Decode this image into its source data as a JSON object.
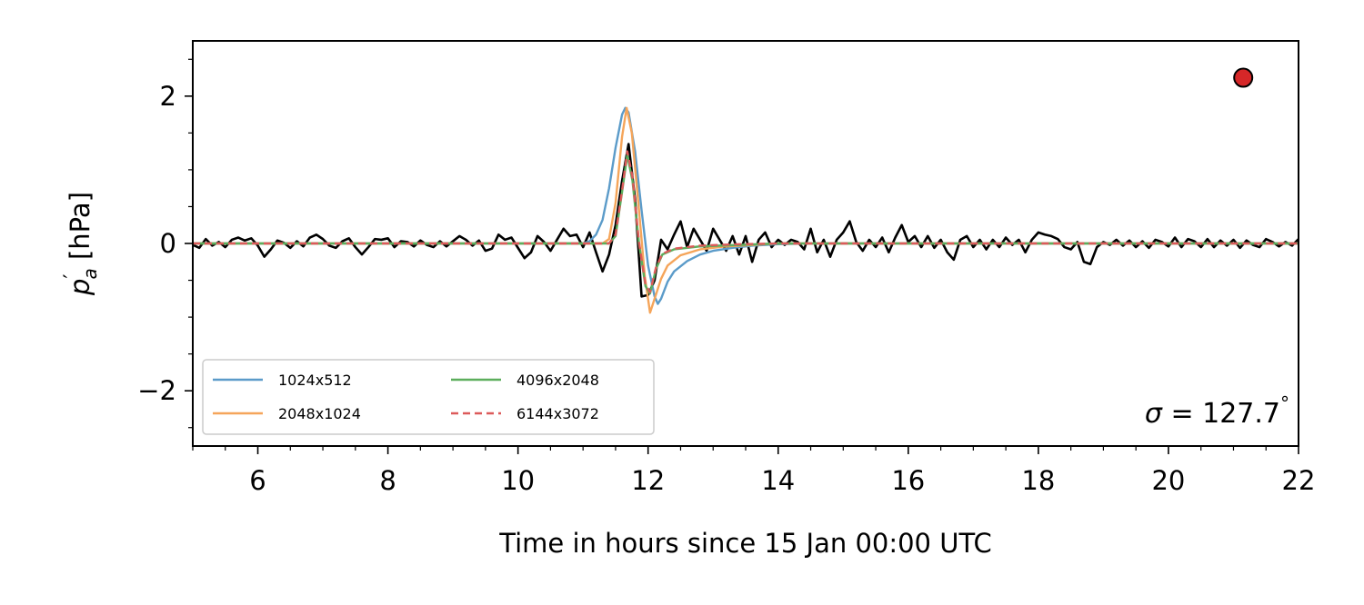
{
  "chart_data": {
    "type": "line",
    "title": "",
    "xlabel": "Time in hours since 15 Jan 00:00 UTC",
    "ylabel_main": "p",
    "ylabel_prime": "′",
    "ylabel_sub": "a",
    "ylabel_unit": " [hPa]",
    "xlim": [
      5,
      22
    ],
    "ylim": [
      -2.75,
      2.75
    ],
    "xticks": [
      6,
      8,
      10,
      12,
      14,
      16,
      18,
      20,
      22
    ],
    "xtick_labels": [
      "6",
      "8",
      "10",
      "12",
      "14",
      "16",
      "18",
      "20",
      "22"
    ],
    "yticks": [
      -2,
      0,
      2
    ],
    "ytick_labels": [
      "−2",
      "0",
      "2"
    ],
    "grid": false,
    "legend_position": "lower-left",
    "annotation": {
      "sigma_symbol": "σ",
      "sigma_eq": " =  127.7",
      "degree": "°"
    },
    "marker": {
      "x": 21.15,
      "y": 2.25,
      "color": "#d62728",
      "edge": "#000000",
      "shape": "circle"
    },
    "series": [
      {
        "name": "",
        "color": "#000000",
        "style": "solid",
        "points": [
          [
            5.0,
            -0.02
          ],
          [
            5.1,
            -0.06
          ],
          [
            5.2,
            0.06
          ],
          [
            5.3,
            -0.03
          ],
          [
            5.4,
            0.02
          ],
          [
            5.5,
            -0.05
          ],
          [
            5.6,
            0.05
          ],
          [
            5.7,
            0.08
          ],
          [
            5.8,
            0.04
          ],
          [
            5.9,
            0.07
          ],
          [
            6.0,
            -0.03
          ],
          [
            6.1,
            -0.18
          ],
          [
            6.2,
            -0.08
          ],
          [
            6.3,
            0.04
          ],
          [
            6.4,
            0.01
          ],
          [
            6.5,
            -0.06
          ],
          [
            6.6,
            0.03
          ],
          [
            6.7,
            -0.04
          ],
          [
            6.8,
            0.08
          ],
          [
            6.9,
            0.12
          ],
          [
            7.0,
            0.06
          ],
          [
            7.1,
            -0.03
          ],
          [
            7.2,
            -0.06
          ],
          [
            7.3,
            0.03
          ],
          [
            7.4,
            0.07
          ],
          [
            7.5,
            -0.05
          ],
          [
            7.6,
            -0.15
          ],
          [
            7.7,
            -0.05
          ],
          [
            7.8,
            0.06
          ],
          [
            7.9,
            0.05
          ],
          [
            8.0,
            0.07
          ],
          [
            8.1,
            -0.05
          ],
          [
            8.2,
            0.03
          ],
          [
            8.3,
            0.02
          ],
          [
            8.4,
            -0.04
          ],
          [
            8.5,
            0.04
          ],
          [
            8.6,
            -0.02
          ],
          [
            8.7,
            -0.05
          ],
          [
            8.8,
            0.03
          ],
          [
            8.9,
            -0.04
          ],
          [
            9.0,
            0.03
          ],
          [
            9.1,
            0.1
          ],
          [
            9.2,
            0.05
          ],
          [
            9.3,
            -0.03
          ],
          [
            9.4,
            0.04
          ],
          [
            9.5,
            -0.1
          ],
          [
            9.6,
            -0.07
          ],
          [
            9.7,
            0.12
          ],
          [
            9.8,
            0.05
          ],
          [
            9.9,
            0.08
          ],
          [
            10.0,
            -0.06
          ],
          [
            10.1,
            -0.2
          ],
          [
            10.2,
            -0.12
          ],
          [
            10.3,
            0.1
          ],
          [
            10.4,
            0.02
          ],
          [
            10.5,
            -0.1
          ],
          [
            10.6,
            0.05
          ],
          [
            10.7,
            0.2
          ],
          [
            10.8,
            0.1
          ],
          [
            10.9,
            0.12
          ],
          [
            11.0,
            -0.05
          ],
          [
            11.1,
            0.15
          ],
          [
            11.2,
            -0.12
          ],
          [
            11.3,
            -0.38
          ],
          [
            11.4,
            -0.15
          ],
          [
            11.5,
            0.25
          ],
          [
            11.6,
            0.85
          ],
          [
            11.7,
            1.35
          ],
          [
            11.8,
            0.6
          ],
          [
            11.9,
            -0.72
          ],
          [
            12.0,
            -0.7
          ],
          [
            12.1,
            -0.5
          ],
          [
            12.2,
            0.05
          ],
          [
            12.3,
            -0.08
          ],
          [
            12.4,
            0.12
          ],
          [
            12.5,
            0.3
          ],
          [
            12.6,
            -0.05
          ],
          [
            12.7,
            0.2
          ],
          [
            12.8,
            0.05
          ],
          [
            12.9,
            -0.1
          ],
          [
            13.0,
            0.2
          ],
          [
            13.1,
            0.05
          ],
          [
            13.2,
            -0.1
          ],
          [
            13.3,
            0.1
          ],
          [
            13.4,
            -0.15
          ],
          [
            13.5,
            0.1
          ],
          [
            13.6,
            -0.25
          ],
          [
            13.7,
            0.05
          ],
          [
            13.8,
            0.15
          ],
          [
            13.9,
            -0.05
          ],
          [
            14.0,
            0.05
          ],
          [
            14.1,
            -0.02
          ],
          [
            14.2,
            0.05
          ],
          [
            14.3,
            0.02
          ],
          [
            14.4,
            -0.08
          ],
          [
            14.5,
            0.2
          ],
          [
            14.6,
            -0.12
          ],
          [
            14.7,
            0.05
          ],
          [
            14.8,
            -0.18
          ],
          [
            14.9,
            0.05
          ],
          [
            15.0,
            0.15
          ],
          [
            15.1,
            0.3
          ],
          [
            15.2,
            0.02
          ],
          [
            15.3,
            -0.1
          ],
          [
            15.4,
            0.05
          ],
          [
            15.5,
            -0.05
          ],
          [
            15.6,
            0.08
          ],
          [
            15.7,
            -0.12
          ],
          [
            15.8,
            0.08
          ],
          [
            15.9,
            0.25
          ],
          [
            16.0,
            0.02
          ],
          [
            16.1,
            0.1
          ],
          [
            16.2,
            -0.05
          ],
          [
            16.3,
            0.1
          ],
          [
            16.4,
            -0.06
          ],
          [
            16.5,
            0.05
          ],
          [
            16.6,
            -0.12
          ],
          [
            16.7,
            -0.22
          ],
          [
            16.8,
            0.05
          ],
          [
            16.9,
            0.1
          ],
          [
            17.0,
            -0.05
          ],
          [
            17.1,
            0.05
          ],
          [
            17.2,
            -0.08
          ],
          [
            17.3,
            0.05
          ],
          [
            17.4,
            -0.05
          ],
          [
            17.5,
            0.08
          ],
          [
            17.6,
            -0.02
          ],
          [
            17.7,
            0.05
          ],
          [
            17.8,
            -0.12
          ],
          [
            17.9,
            0.05
          ],
          [
            18.0,
            0.15
          ],
          [
            18.1,
            0.12
          ],
          [
            18.2,
            0.1
          ],
          [
            18.3,
            0.06
          ],
          [
            18.4,
            -0.05
          ],
          [
            18.5,
            -0.08
          ],
          [
            18.6,
            0.02
          ],
          [
            18.7,
            -0.25
          ],
          [
            18.8,
            -0.28
          ],
          [
            18.9,
            -0.05
          ],
          [
            19.0,
            0.02
          ],
          [
            19.1,
            -0.02
          ],
          [
            19.2,
            0.05
          ],
          [
            19.3,
            -0.03
          ],
          [
            19.4,
            0.04
          ],
          [
            19.5,
            -0.05
          ],
          [
            19.6,
            0.03
          ],
          [
            19.7,
            -0.06
          ],
          [
            19.8,
            0.05
          ],
          [
            19.9,
            0.02
          ],
          [
            20.0,
            -0.04
          ],
          [
            20.1,
            0.08
          ],
          [
            20.2,
            -0.05
          ],
          [
            20.3,
            0.06
          ],
          [
            20.4,
            0.03
          ],
          [
            20.5,
            -0.05
          ],
          [
            20.6,
            0.06
          ],
          [
            20.7,
            -0.05
          ],
          [
            20.8,
            0.04
          ],
          [
            20.9,
            -0.03
          ],
          [
            21.0,
            0.05
          ],
          [
            21.1,
            -0.06
          ],
          [
            21.2,
            0.04
          ],
          [
            21.3,
            -0.02
          ],
          [
            21.4,
            -0.05
          ],
          [
            21.5,
            0.06
          ],
          [
            21.6,
            0.02
          ],
          [
            21.7,
            -0.04
          ],
          [
            21.8,
            0.02
          ],
          [
            21.9,
            -0.03
          ],
          [
            22.0,
            0.06
          ]
        ]
      },
      {
        "name": "1024x512",
        "color": "#5b9bc9",
        "style": "solid",
        "points": [
          [
            5.0,
            0.0
          ],
          [
            11.0,
            0.0
          ],
          [
            11.1,
            0.03
          ],
          [
            11.2,
            0.12
          ],
          [
            11.3,
            0.32
          ],
          [
            11.4,
            0.75
          ],
          [
            11.5,
            1.3
          ],
          [
            11.6,
            1.75
          ],
          [
            11.65,
            1.84
          ],
          [
            11.7,
            1.78
          ],
          [
            11.8,
            1.25
          ],
          [
            11.9,
            0.45
          ],
          [
            12.0,
            -0.3
          ],
          [
            12.1,
            -0.72
          ],
          [
            12.15,
            -0.82
          ],
          [
            12.2,
            -0.75
          ],
          [
            12.3,
            -0.52
          ],
          [
            12.4,
            -0.38
          ],
          [
            12.6,
            -0.24
          ],
          [
            12.8,
            -0.15
          ],
          [
            13.0,
            -0.1
          ],
          [
            13.3,
            -0.06
          ],
          [
            13.6,
            -0.03
          ],
          [
            14.0,
            -0.01
          ],
          [
            14.5,
            0.0
          ],
          [
            22.0,
            0.0
          ]
        ]
      },
      {
        "name": "2048x1024",
        "color": "#f5a55a",
        "style": "solid",
        "points": [
          [
            5.0,
            0.0
          ],
          [
            11.3,
            0.0
          ],
          [
            11.4,
            0.06
          ],
          [
            11.5,
            0.55
          ],
          [
            11.6,
            1.45
          ],
          [
            11.67,
            1.84
          ],
          [
            11.75,
            1.5
          ],
          [
            11.85,
            0.55
          ],
          [
            11.95,
            -0.45
          ],
          [
            12.03,
            -0.94
          ],
          [
            12.1,
            -0.75
          ],
          [
            12.2,
            -0.48
          ],
          [
            12.3,
            -0.3
          ],
          [
            12.5,
            -0.16
          ],
          [
            12.8,
            -0.08
          ],
          [
            13.2,
            -0.04
          ],
          [
            13.6,
            -0.02
          ],
          [
            14.0,
            0.0
          ],
          [
            22.0,
            0.0
          ]
        ]
      },
      {
        "name": "4096x2048",
        "color": "#5cae5c",
        "style": "solid",
        "points": [
          [
            5.0,
            0.0
          ],
          [
            11.4,
            0.0
          ],
          [
            11.5,
            0.1
          ],
          [
            11.6,
            0.7
          ],
          [
            11.68,
            1.2
          ],
          [
            11.76,
            0.85
          ],
          [
            11.86,
            0.0
          ],
          [
            11.96,
            -0.58
          ],
          [
            12.03,
            -0.68
          ],
          [
            12.12,
            -0.35
          ],
          [
            12.22,
            -0.15
          ],
          [
            12.4,
            -0.08
          ],
          [
            12.8,
            -0.04
          ],
          [
            13.4,
            -0.02
          ],
          [
            14.0,
            0.0
          ],
          [
            22.0,
            0.0
          ]
        ]
      },
      {
        "name": "6144x3072",
        "color": "#dc5a5a",
        "style": "dashed",
        "points": [
          [
            5.0,
            0.0
          ],
          [
            11.4,
            0.0
          ],
          [
            11.5,
            0.12
          ],
          [
            11.6,
            0.72
          ],
          [
            11.68,
            1.25
          ],
          [
            11.76,
            0.9
          ],
          [
            11.86,
            0.02
          ],
          [
            11.96,
            -0.56
          ],
          [
            12.03,
            -0.66
          ],
          [
            12.12,
            -0.33
          ],
          [
            12.22,
            -0.14
          ],
          [
            12.4,
            -0.07
          ],
          [
            12.8,
            -0.03
          ],
          [
            13.4,
            -0.01
          ],
          [
            14.0,
            0.0
          ],
          [
            22.0,
            0.0
          ]
        ]
      }
    ]
  }
}
